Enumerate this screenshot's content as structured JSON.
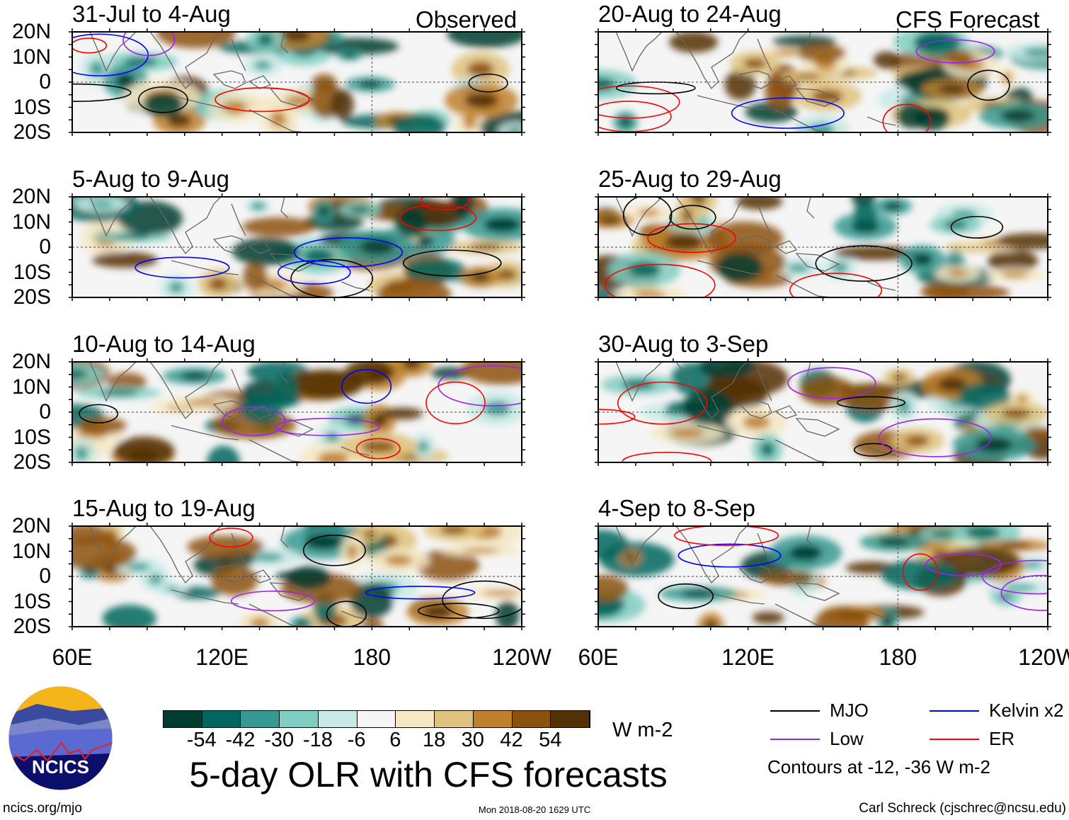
{
  "header": {
    "observed_label": "Observed",
    "forecast_label": "CFS Forecast"
  },
  "panels_observed": [
    {
      "title": "31-Jul to 4-Aug"
    },
    {
      "title": "5-Aug to 9-Aug"
    },
    {
      "title": "10-Aug to 14-Aug"
    },
    {
      "title": "15-Aug to 19-Aug"
    }
  ],
  "panels_forecast": [
    {
      "title": "20-Aug to 24-Aug"
    },
    {
      "title": "25-Aug to 29-Aug"
    },
    {
      "title": "30-Aug to 3-Sep"
    },
    {
      "title": "4-Sep to 8-Sep"
    }
  ],
  "lat_labels": [
    "20N",
    "10N",
    "0",
    "10S",
    "20S"
  ],
  "lon_labels": [
    "60E",
    "120E",
    "180",
    "120W"
  ],
  "colorbar": {
    "colors": [
      "#013c30",
      "#02665e",
      "#369991",
      "#80cdc1",
      "#c7eae5",
      "#f5f5f5",
      "#f6e8c3",
      "#dfc27d",
      "#bf812d",
      "#8c510a",
      "#543005"
    ],
    "labels": [
      "-54",
      "-42",
      "-30",
      "-18",
      "-6",
      "6",
      "18",
      "30",
      "42",
      "54"
    ],
    "units": "W m-2"
  },
  "legend": {
    "items": [
      {
        "label": "MJO",
        "color": "#000000"
      },
      {
        "label": "Kelvin x2",
        "color": "#0000ff"
      },
      {
        "label": "Low",
        "color": "#a020f0"
      },
      {
        "label": "ER",
        "color": "#ff0000"
      }
    ],
    "contours_note": "Contours at -12, -36 W m-2"
  },
  "main_title": "5-day OLR with CFS forecasts",
  "footer": {
    "logo_text": "NCICS",
    "website": "ncics.org/mjo",
    "timestamp": "Mon 2018-08-20 1629 UTC",
    "author": "Carl Schreck (cjschrec@ncsu.edu)"
  }
}
